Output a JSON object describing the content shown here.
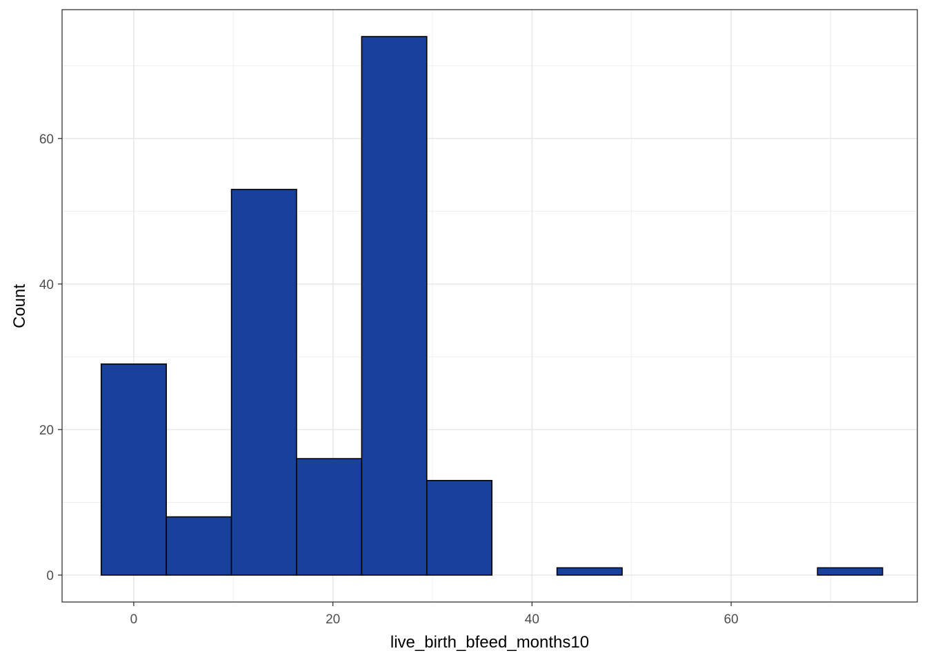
{
  "chart_data": {
    "type": "bar",
    "subtype": "histogram",
    "xlabel": "live_birth_bfeed_months10",
    "ylabel": "Count",
    "xlim": [
      -7.2,
      78.7
    ],
    "ylim": [
      -3.7,
      77.7
    ],
    "x_ticks": [
      0,
      20,
      40,
      60
    ],
    "y_ticks": [
      0,
      20,
      40,
      60
    ],
    "grid": true,
    "bar_fill": "#17419A",
    "bar_stroke": "#000000",
    "bins": [
      {
        "x0": -3.27,
        "x1": 3.27,
        "count": 29
      },
      {
        "x0": 3.27,
        "x1": 9.81,
        "count": 8
      },
      {
        "x0": 9.81,
        "x1": 16.35,
        "count": 53
      },
      {
        "x0": 16.35,
        "x1": 22.89,
        "count": 16
      },
      {
        "x0": 22.89,
        "x1": 29.43,
        "count": 74
      },
      {
        "x0": 29.43,
        "x1": 35.97,
        "count": 13
      },
      {
        "x0": 35.97,
        "x1": 42.51,
        "count": 0
      },
      {
        "x0": 42.51,
        "x1": 49.05,
        "count": 1
      },
      {
        "x0": 49.05,
        "x1": 55.59,
        "count": 0
      },
      {
        "x0": 55.59,
        "x1": 62.13,
        "count": 0
      },
      {
        "x0": 62.13,
        "x1": 68.67,
        "count": 0
      },
      {
        "x0": 68.67,
        "x1": 75.21,
        "count": 1
      }
    ]
  }
}
